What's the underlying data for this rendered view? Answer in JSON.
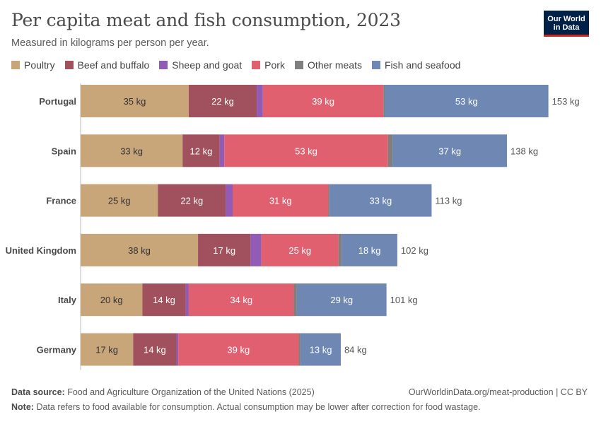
{
  "header": {
    "title": "Per capita meat and fish consumption, 2023",
    "subtitle": "Measured in kilograms per person per year.",
    "logo_line1": "Our World",
    "logo_line2": "in Data"
  },
  "colors": {
    "Poultry": "#C9A57A",
    "Beef and buffalo": "#A0515D",
    "Sheep and goat": "#925BB6",
    "Pork": "#E06070",
    "Other meats": "#7F7F7F",
    "Fish and seafood": "#6E87B3"
  },
  "chart_data": {
    "type": "bar",
    "orientation": "horizontal",
    "stacked": true,
    "categories": [
      "Portugal",
      "Spain",
      "France",
      "United Kingdom",
      "Italy",
      "Germany"
    ],
    "series": [
      {
        "name": "Poultry",
        "values": [
          35,
          33,
          25,
          38,
          20,
          17
        ],
        "labels": [
          "35 kg",
          "33 kg",
          "25 kg",
          "38 kg",
          "20 kg",
          "17 kg"
        ]
      },
      {
        "name": "Beef and buffalo",
        "values": [
          22,
          12,
          22,
          17,
          14,
          14
        ],
        "labels": [
          "22 kg",
          "12 kg",
          "22 kg",
          "17 kg",
          "14 kg",
          "14 kg"
        ]
      },
      {
        "name": "Sheep and goat",
        "values": [
          2,
          1.5,
          2.2,
          3.5,
          1,
          0.6
        ],
        "labels": [
          "",
          "",
          "",
          "",
          "",
          ""
        ]
      },
      {
        "name": "Pork",
        "values": [
          39,
          53,
          31,
          25,
          34,
          39
        ],
        "labels": [
          "39 kg",
          "53 kg",
          "31 kg",
          "25 kg",
          "34 kg",
          "39 kg"
        ]
      },
      {
        "name": "Other meats",
        "values": [
          0.4,
          1.5,
          0.4,
          1,
          1,
          0.6
        ],
        "labels": [
          "",
          "",
          "",
          "",
          "",
          ""
        ]
      },
      {
        "name": "Fish and seafood",
        "values": [
          53,
          37,
          33,
          18,
          29,
          13
        ],
        "labels": [
          "53 kg",
          "37 kg",
          "33 kg",
          "18 kg",
          "29 kg",
          "13 kg"
        ]
      }
    ],
    "totals": [
      "153 kg",
      "138 kg",
      "113 kg",
      "102 kg",
      "101 kg",
      "84 kg"
    ],
    "xlim": [
      0,
      160
    ],
    "legend_position": "top-left",
    "grid": false
  },
  "footer": {
    "source_label": "Data source:",
    "source_text": "Food and Agriculture Organization of the United Nations (2025)",
    "url_text": "OurWorldinData.org/meat-production | CC BY",
    "note_label": "Note:",
    "note_text": "Data refers to food available for consumption. Actual consumption may be lower after correction for food wastage."
  }
}
